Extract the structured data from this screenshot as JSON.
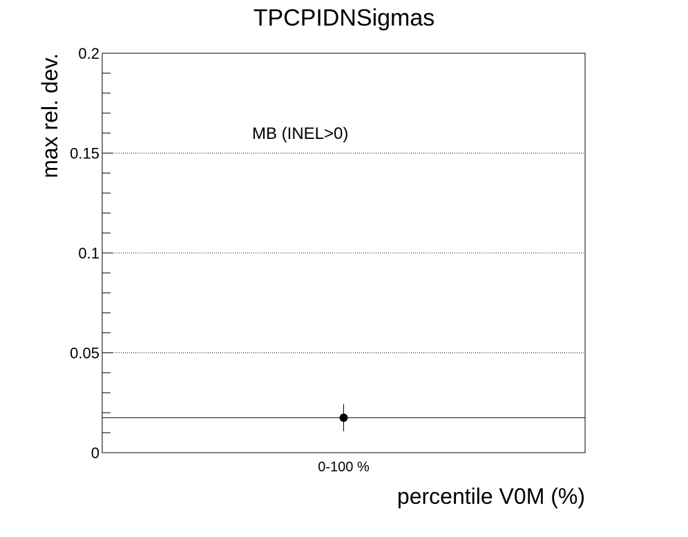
{
  "chart_data": {
    "type": "scatter",
    "title": "TPCPIDNSigmas",
    "xlabel": "percentile V0M (%)",
    "ylabel": "max rel. dev.",
    "categories": [
      "0-100 %"
    ],
    "ylim": [
      0,
      0.2
    ],
    "yticks": [
      "0",
      "0.05",
      "0.1",
      "0.15",
      "0.2"
    ],
    "grid": "horizontal dotted",
    "annotation": "MB (INEL>0)",
    "series": [
      {
        "points": [
          {
            "category": "0-100 %",
            "y": 0.0175,
            "yerr": 0.0068
          }
        ],
        "horizontal_line_y": 0.0175
      }
    ],
    "colors": {
      "marker": "#000000",
      "axes": "#000000",
      "grid": "#000000"
    }
  }
}
